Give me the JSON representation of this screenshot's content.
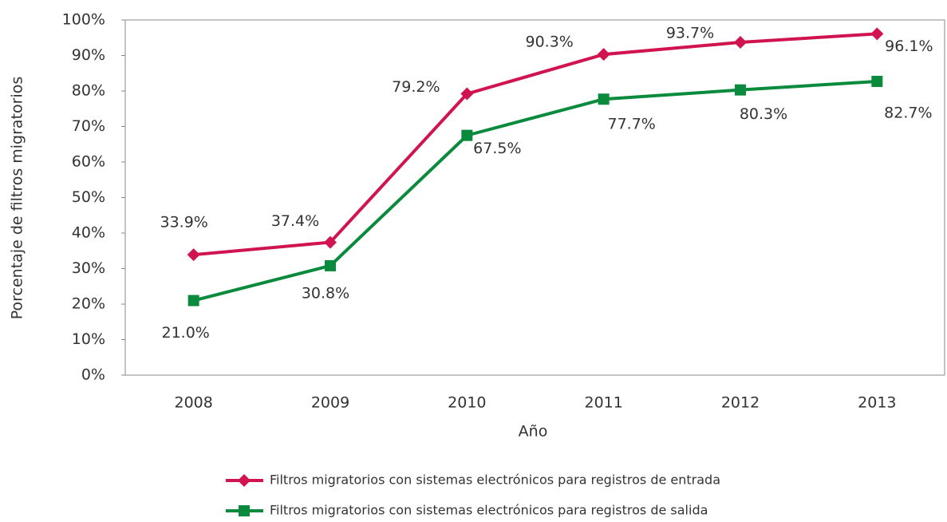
{
  "chart_data": {
    "type": "line",
    "x_label": "Año",
    "y_label": "Porcentaje de filtros migratorios",
    "categories": [
      "2008",
      "2009",
      "2010",
      "2011",
      "2012",
      "2013"
    ],
    "series": [
      {
        "name": "Filtros migratorios con sistemas electrónicos para registros de entrada",
        "color": "#d0144f",
        "marker": "diamond",
        "values": [
          33.9,
          37.4,
          79.2,
          90.3,
          93.7,
          96.1
        ],
        "value_labels": [
          "33.9%",
          "37.4%",
          "79.2%",
          "90.3%",
          "93.7%",
          "96.1%"
        ]
      },
      {
        "name": "Filtros migratorios con sistemas electrónicos para registros de salida",
        "color": "#0a8a3c",
        "marker": "square",
        "values": [
          21.0,
          30.8,
          67.5,
          77.7,
          80.3,
          82.7
        ],
        "value_labels": [
          "21.0%",
          "30.8%",
          "67.5%",
          "77.7%",
          "80.3%",
          "82.7%"
        ]
      }
    ],
    "ylim": [
      0,
      100
    ],
    "yticks": [
      {
        "value": 0,
        "label": "0%"
      },
      {
        "value": 10,
        "label": "10%"
      },
      {
        "value": 20,
        "label": "20%"
      },
      {
        "value": 30,
        "label": "30%"
      },
      {
        "value": 40,
        "label": "40%"
      },
      {
        "value": 50,
        "label": "50%"
      },
      {
        "value": 60,
        "label": "60%"
      },
      {
        "value": 70,
        "label": "70%"
      },
      {
        "value": 80,
        "label": "80%"
      },
      {
        "value": 90,
        "label": "90%"
      },
      {
        "value": 100,
        "label": "100%"
      }
    ],
    "grid": false,
    "legend": "bottom"
  }
}
